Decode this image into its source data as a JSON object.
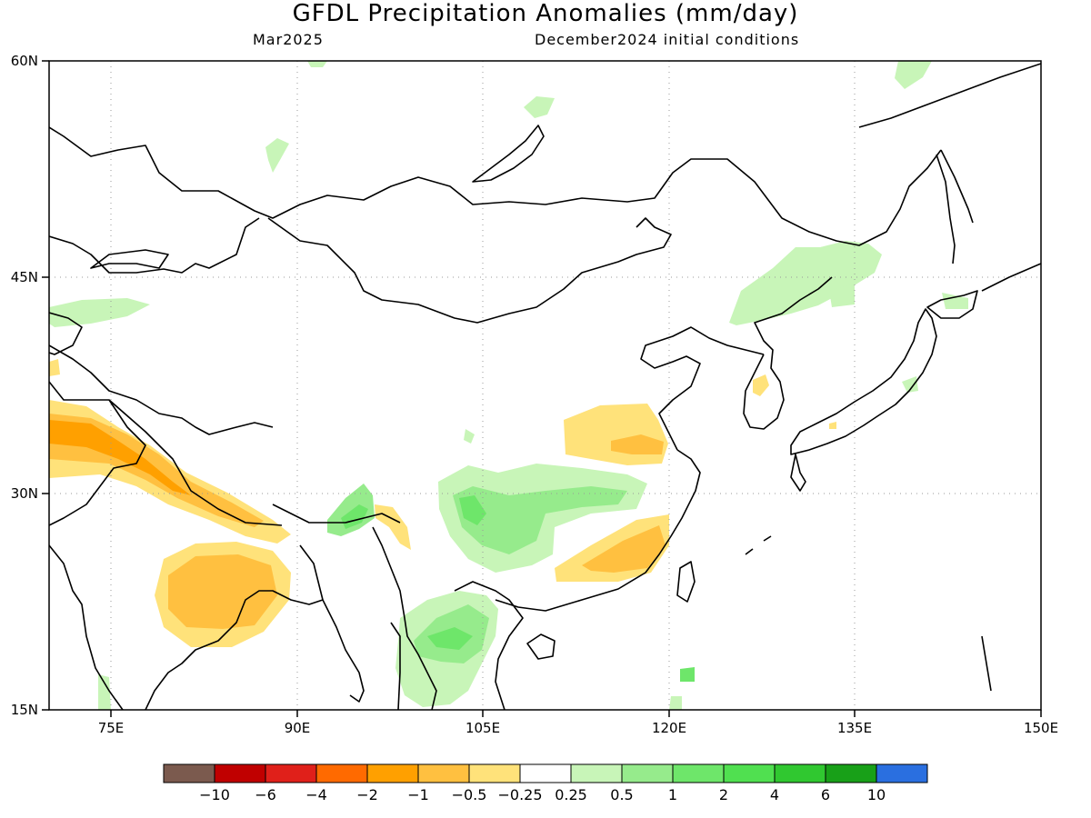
{
  "title": "GFDL Precipitation Anomalies (mm/day)",
  "subtitle_left": "Mar2025",
  "subtitle_right": "December2024 initial conditions",
  "map": {
    "lat_labels": [
      "60N",
      "45N",
      "30N",
      "15N"
    ],
    "lon_labels": [
      "75E",
      "90E",
      "105E",
      "120E",
      "135E",
      "150E"
    ],
    "extent": {
      "lon_min": 70,
      "lon_max": 150,
      "lat_min": 15,
      "lat_max": 60
    }
  },
  "colorbar": {
    "colors": [
      "#7b5a4e",
      "#c00000",
      "#e0201a",
      "#ff6a00",
      "#ffa000",
      "#ffc040",
      "#ffe27a",
      "#ffffff",
      "#c8f5b8",
      "#96eb8c",
      "#6ee66a",
      "#50e050",
      "#30c830",
      "#18a018",
      "#2a6fe0"
    ],
    "labels": [
      "−10",
      "−6",
      "−4",
      "−2",
      "−1",
      "−0.5",
      "−0.25",
      "0.25",
      "0.5",
      "1",
      "2",
      "4",
      "6",
      "10"
    ]
  }
}
